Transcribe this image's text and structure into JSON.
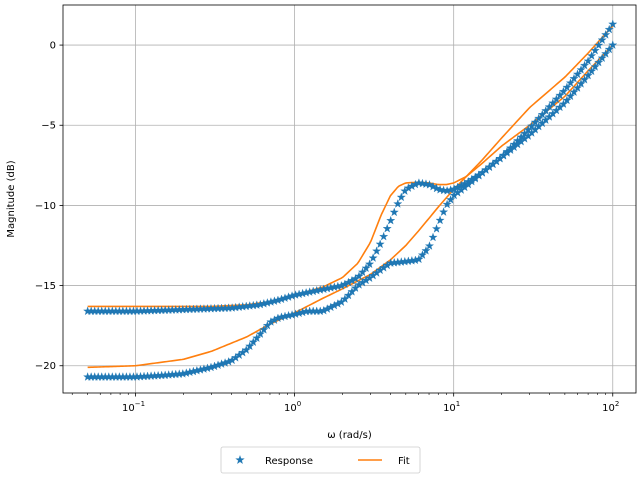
{
  "chart_data": {
    "type": "line",
    "title": "",
    "xlabel": "ω (rad/s)",
    "ylabel": "Magnitude (dB)",
    "xscale": "log",
    "xlim": [
      0.035,
      140
    ],
    "ylim": [
      -21.7,
      2.5
    ],
    "grid": true,
    "legend_position": "bottom-center, outside",
    "x_ticks": [
      {
        "value": 0.1,
        "base": "10",
        "exp": "−1"
      },
      {
        "value": 1,
        "base": "10",
        "exp": "0"
      },
      {
        "value": 10,
        "base": "10",
        "exp": "1"
      },
      {
        "value": 100,
        "base": "10",
        "exp": "2"
      }
    ],
    "y_ticks": [
      {
        "value": 0,
        "label": "0"
      },
      {
        "value": -5,
        "label": "−5"
      },
      {
        "value": -10,
        "label": "−10"
      },
      {
        "value": -15,
        "label": "−15"
      },
      {
        "value": -20,
        "label": "−20"
      }
    ],
    "legend": [
      {
        "label": "Response",
        "marker": "star",
        "color": "#1f77b4"
      },
      {
        "label": "Fit",
        "marker": "line",
        "color": "#ff7f0e"
      }
    ],
    "series": [
      {
        "name": "Response",
        "group": "upper",
        "marker": "star",
        "color": "#1f77b4",
        "x": [
          0.05,
          0.1,
          0.2,
          0.4,
          0.6,
          0.8,
          1.0,
          1.4,
          2.0,
          2.5,
          3.0,
          3.5,
          4.0,
          4.5,
          5.0,
          6.0,
          7.0,
          8.0,
          9.0,
          10.0,
          12.0,
          15.0,
          20.0,
          30.0,
          50.0,
          70.0,
          100.0
        ],
        "y": [
          -16.6,
          -16.6,
          -16.5,
          -16.4,
          -16.2,
          -15.9,
          -15.6,
          -15.3,
          -15.0,
          -14.5,
          -13.6,
          -12.3,
          -11.0,
          -9.8,
          -9.0,
          -8.6,
          -8.7,
          -9.0,
          -9.1,
          -9.0,
          -8.6,
          -8.0,
          -7.0,
          -5.2,
          -2.8,
          -1.0,
          1.3
        ]
      },
      {
        "name": "Response",
        "group": "lower",
        "marker": "star",
        "color": "#1f77b4",
        "x": [
          0.05,
          0.1,
          0.15,
          0.2,
          0.3,
          0.4,
          0.5,
          0.6,
          0.7,
          0.8,
          1.0,
          1.2,
          1.5,
          2.0,
          2.5,
          3.0,
          3.5,
          4.0,
          5.0,
          6.0,
          7.0,
          8.0,
          9.0,
          10.0,
          12.0,
          15.0,
          20.0,
          30.0,
          50.0,
          70.0,
          100.0
        ],
        "y": [
          -20.7,
          -20.7,
          -20.6,
          -20.5,
          -20.1,
          -19.7,
          -19.0,
          -18.1,
          -17.3,
          -17.0,
          -16.8,
          -16.6,
          -16.6,
          -16.0,
          -15.0,
          -14.5,
          -14.0,
          -13.6,
          -13.5,
          -13.4,
          -12.6,
          -11.2,
          -10.0,
          -9.4,
          -8.8,
          -8.0,
          -7.0,
          -5.6,
          -3.6,
          -1.9,
          0.0
        ]
      },
      {
        "name": "Fit",
        "group": "upper",
        "marker": "line",
        "color": "#ff7f0e",
        "x": [
          0.05,
          0.1,
          0.3,
          0.5,
          0.7,
          1.0,
          1.5,
          2.0,
          2.5,
          3.0,
          3.5,
          4.0,
          4.5,
          5.0,
          6.0,
          7.0,
          8.0,
          9.0,
          10.0,
          12.0,
          15.0,
          20.0,
          30.0,
          50.0,
          70.0,
          100.0
        ],
        "y": [
          -16.3,
          -16.3,
          -16.3,
          -16.2,
          -16.0,
          -15.6,
          -15.1,
          -14.5,
          -13.6,
          -12.3,
          -10.6,
          -9.4,
          -8.8,
          -8.6,
          -8.55,
          -8.6,
          -8.7,
          -8.7,
          -8.6,
          -8.2,
          -7.2,
          -5.8,
          -3.9,
          -2.0,
          -0.5,
          1.2
        ]
      },
      {
        "name": "Fit",
        "group": "lower",
        "marker": "line",
        "color": "#ff7f0e",
        "x": [
          0.05,
          0.1,
          0.2,
          0.3,
          0.5,
          0.7,
          1.0,
          1.5,
          2.0,
          3.0,
          4.0,
          5.0,
          6.0,
          7.0,
          8.0,
          10.0,
          12.0,
          15.0,
          20.0,
          30.0,
          50.0,
          70.0,
          100.0
        ],
        "y": [
          -20.1,
          -20.0,
          -19.6,
          -19.1,
          -18.2,
          -17.4,
          -16.7,
          -15.8,
          -15.2,
          -14.3,
          -13.4,
          -12.5,
          -11.6,
          -10.8,
          -10.1,
          -9.0,
          -8.2,
          -7.4,
          -6.3,
          -5.0,
          -3.2,
          -1.6,
          0.0
        ]
      }
    ]
  }
}
